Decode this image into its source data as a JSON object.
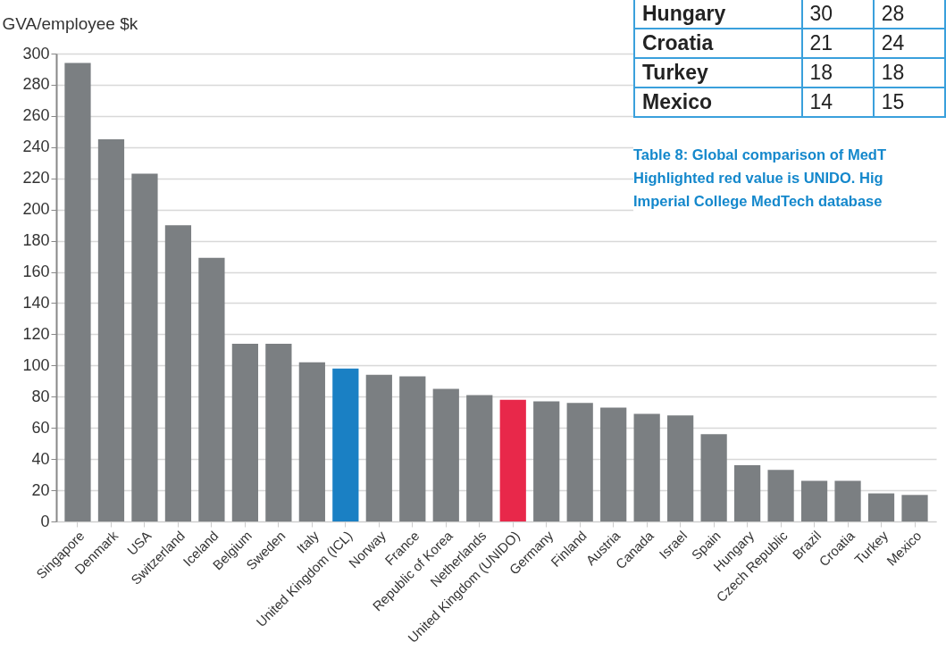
{
  "chart_data": [
    {
      "type": "bar",
      "ylabel": "GVA/employee $k",
      "categories": [
        "Singapore",
        "Denmark",
        "USA",
        "Switzerland",
        "Iceland",
        "Belgium",
        "Sweden",
        "Italy",
        "United Kingdom (ICL)",
        "Norway",
        "France",
        "Republic of Korea",
        "Netherlands",
        "United Kingdom (UNIDO)",
        "Germany",
        "Finland",
        "Austria",
        "Canada",
        "Israel",
        "Spain",
        "Hungary",
        "Czech Republic",
        "Brazil",
        "Croatia",
        "Turkey",
        "Mexico"
      ],
      "values": [
        294,
        245,
        223,
        190,
        169,
        114,
        114,
        102,
        98,
        94,
        93,
        85,
        81,
        78,
        77,
        76,
        73,
        69,
        68,
        56,
        36,
        33,
        26,
        26,
        18,
        17
      ],
      "colors": [
        "#7b7f82",
        "#7b7f82",
        "#7b7f82",
        "#7b7f82",
        "#7b7f82",
        "#7b7f82",
        "#7b7f82",
        "#7b7f82",
        "#1a80c4",
        "#7b7f82",
        "#7b7f82",
        "#7b7f82",
        "#7b7f82",
        "#e8284a",
        "#7b7f82",
        "#7b7f82",
        "#7b7f82",
        "#7b7f82",
        "#7b7f82",
        "#7b7f82",
        "#7b7f82",
        "#7b7f82",
        "#7b7f82",
        "#7b7f82",
        "#7b7f82",
        "#7b7f82"
      ],
      "ylim": [
        0,
        300
      ],
      "yticks": [
        0,
        20,
        40,
        60,
        80,
        100,
        120,
        140,
        160,
        180,
        200,
        220,
        240,
        260,
        280,
        300
      ],
      "grid": "y"
    },
    {
      "type": "other",
      "categories": [
        "Hungary",
        "Croatia",
        "Turkey",
        "Mexico"
      ],
      "data_labels": true,
      "series": [
        {
          "values": [
            30,
            21,
            18,
            14
          ]
        },
        {
          "values": [
            28,
            24,
            18,
            15
          ]
        }
      ],
      "annotations": [
        "Table 8: Global comparison of MedT",
        "Highlighted red value is UNIDO. Hig",
        "Imperial College MedTech database"
      ]
    }
  ]
}
